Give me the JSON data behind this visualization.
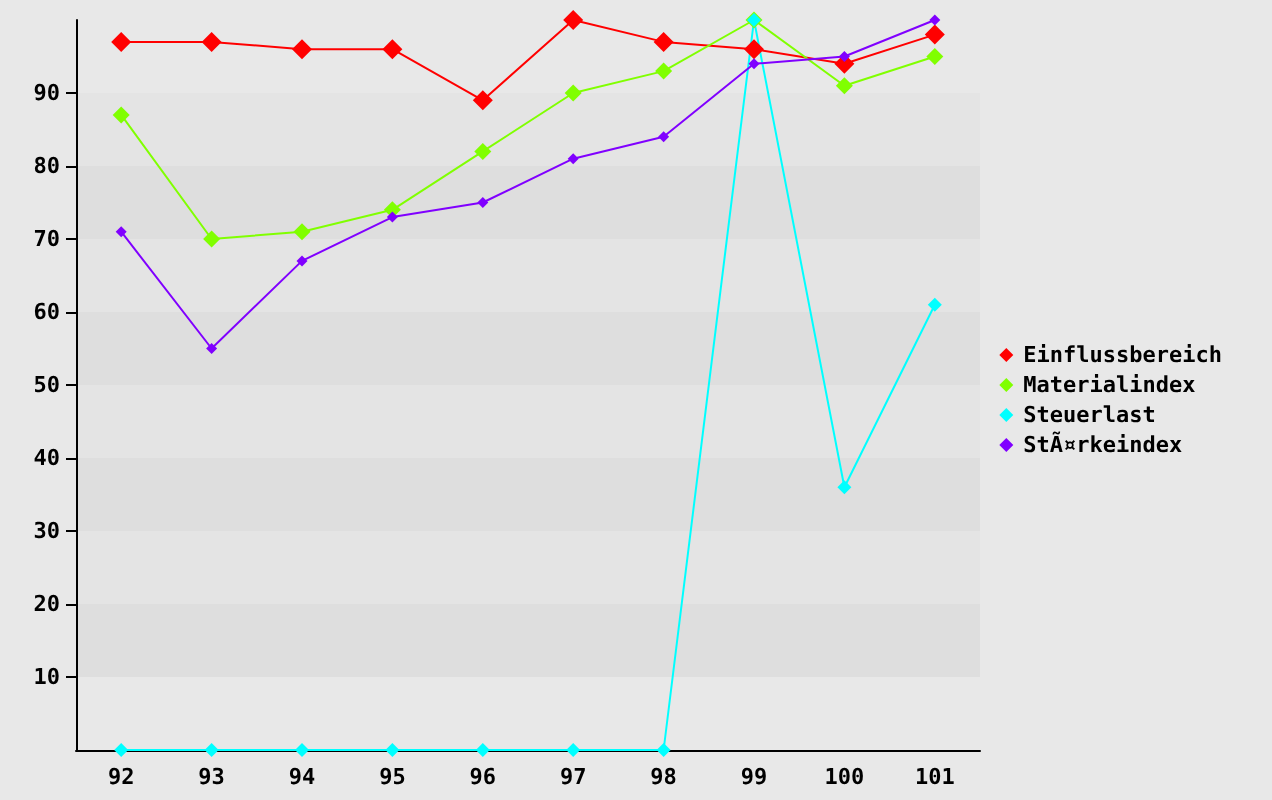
{
  "chart_data": {
    "type": "line",
    "categories": [
      "92",
      "93",
      "94",
      "95",
      "96",
      "97",
      "98",
      "99",
      "100",
      "101"
    ],
    "series": [
      {
        "name": "Einflussbereich",
        "color": "#ff0000",
        "values": [
          97,
          97,
          96,
          96,
          89,
          100,
          97,
          96,
          94,
          98
        ]
      },
      {
        "name": "Materialindex",
        "color": "#80ff00",
        "values": [
          87,
          70,
          71,
          74,
          82,
          90,
          93,
          100,
          91,
          95
        ]
      },
      {
        "name": "Steuerlast",
        "color": "#00ffff",
        "values": [
          0,
          0,
          0,
          0,
          0,
          0,
          0,
          100,
          36,
          61
        ]
      },
      {
        "name": "StÃ¤rkeindex",
        "color": "#8000ff",
        "values": [
          71,
          55,
          67,
          73,
          75,
          81,
          84,
          94,
          95,
          100
        ]
      }
    ],
    "ylim": [
      0,
      100
    ],
    "yticks": [
      10,
      20,
      30,
      40,
      50,
      60,
      70,
      80,
      90
    ],
    "grid": false,
    "legend": "right",
    "marker": "diamond",
    "line_style": "solid"
  }
}
